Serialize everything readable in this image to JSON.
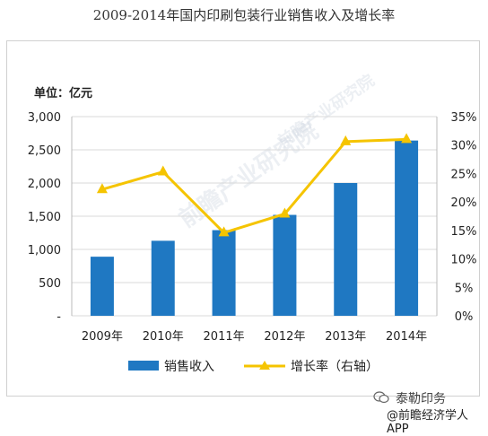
{
  "page": {
    "title": "2009-2014年国内印刷包装行业销售收入及增长率"
  },
  "watermarks": {
    "center": "前瞻产业研究院",
    "sub": "前瞻产业研究院"
  },
  "footer": {
    "account": "泰勒印务",
    "source": "@前瞻经济学人APP"
  },
  "colors": {
    "bar": "#1f78c2",
    "line": "#f5c400",
    "grid": "#d8d8d8"
  },
  "chart_data": {
    "type": "bar",
    "unit_label": "单位：亿元",
    "categories": [
      "2009年",
      "2010年",
      "2011年",
      "2012年",
      "2013年",
      "2014年"
    ],
    "series": [
      {
        "name": "销售收入",
        "type": "bar",
        "axis": "left",
        "values": [
          890,
          1130,
          1290,
          1520,
          2000,
          2640
        ]
      },
      {
        "name": "增长率（右轴）",
        "type": "line",
        "axis": "right",
        "values": [
          22.2,
          25.3,
          14.6,
          17.9,
          30.6,
          31.0
        ]
      }
    ],
    "left_axis": {
      "ylim": [
        0,
        3000
      ],
      "ticks": [
        "-",
        "500",
        "1,000",
        "1,500",
        "2,000",
        "2,500",
        "3,000"
      ]
    },
    "right_axis": {
      "ylim": [
        0,
        35
      ],
      "ticks": [
        "0%",
        "5%",
        "10%",
        "15%",
        "20%",
        "25%",
        "30%",
        "35%"
      ]
    },
    "grid": true,
    "legend_position": "bottom"
  }
}
